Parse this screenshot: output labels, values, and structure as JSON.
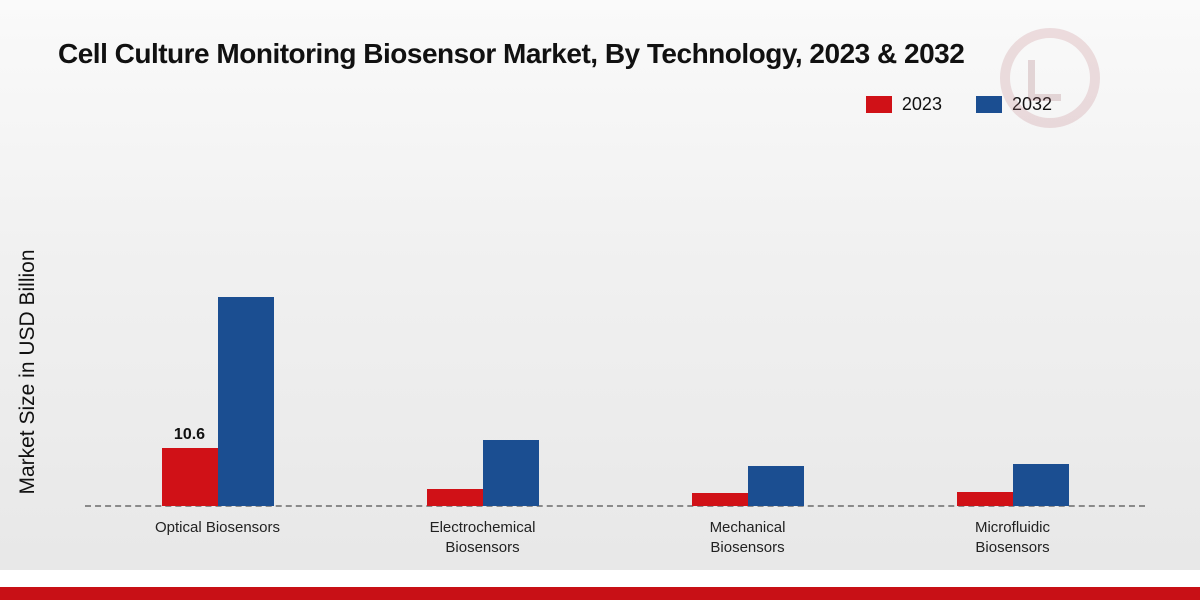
{
  "chart_data": {
    "type": "bar",
    "title": "Cell Culture Monitoring Biosensor Market, By Technology, 2023 & 2032",
    "ylabel": "Market Size in USD Billion",
    "xlabel": "",
    "categories": [
      "Optical Biosensors",
      "Electrochemical Biosensors",
      "Mechanical Biosensors",
      "Microfluidic Biosensors"
    ],
    "series": [
      {
        "name": "2023",
        "color": "#d01117",
        "values": [
          10.6,
          3.0,
          2.4,
          2.6
        ]
      },
      {
        "name": "2032",
        "color": "#1b4e91",
        "values": [
          38.0,
          12.0,
          7.2,
          7.7
        ]
      }
    ],
    "data_labels": [
      {
        "series": "2023",
        "category": "Optical Biosensors",
        "text": "10.6"
      }
    ],
    "ylim": [
      0,
      45
    ],
    "grid": false,
    "legend_position": "top-right",
    "baseline_style": "dashed",
    "accent_bar_color": "#c81016"
  }
}
